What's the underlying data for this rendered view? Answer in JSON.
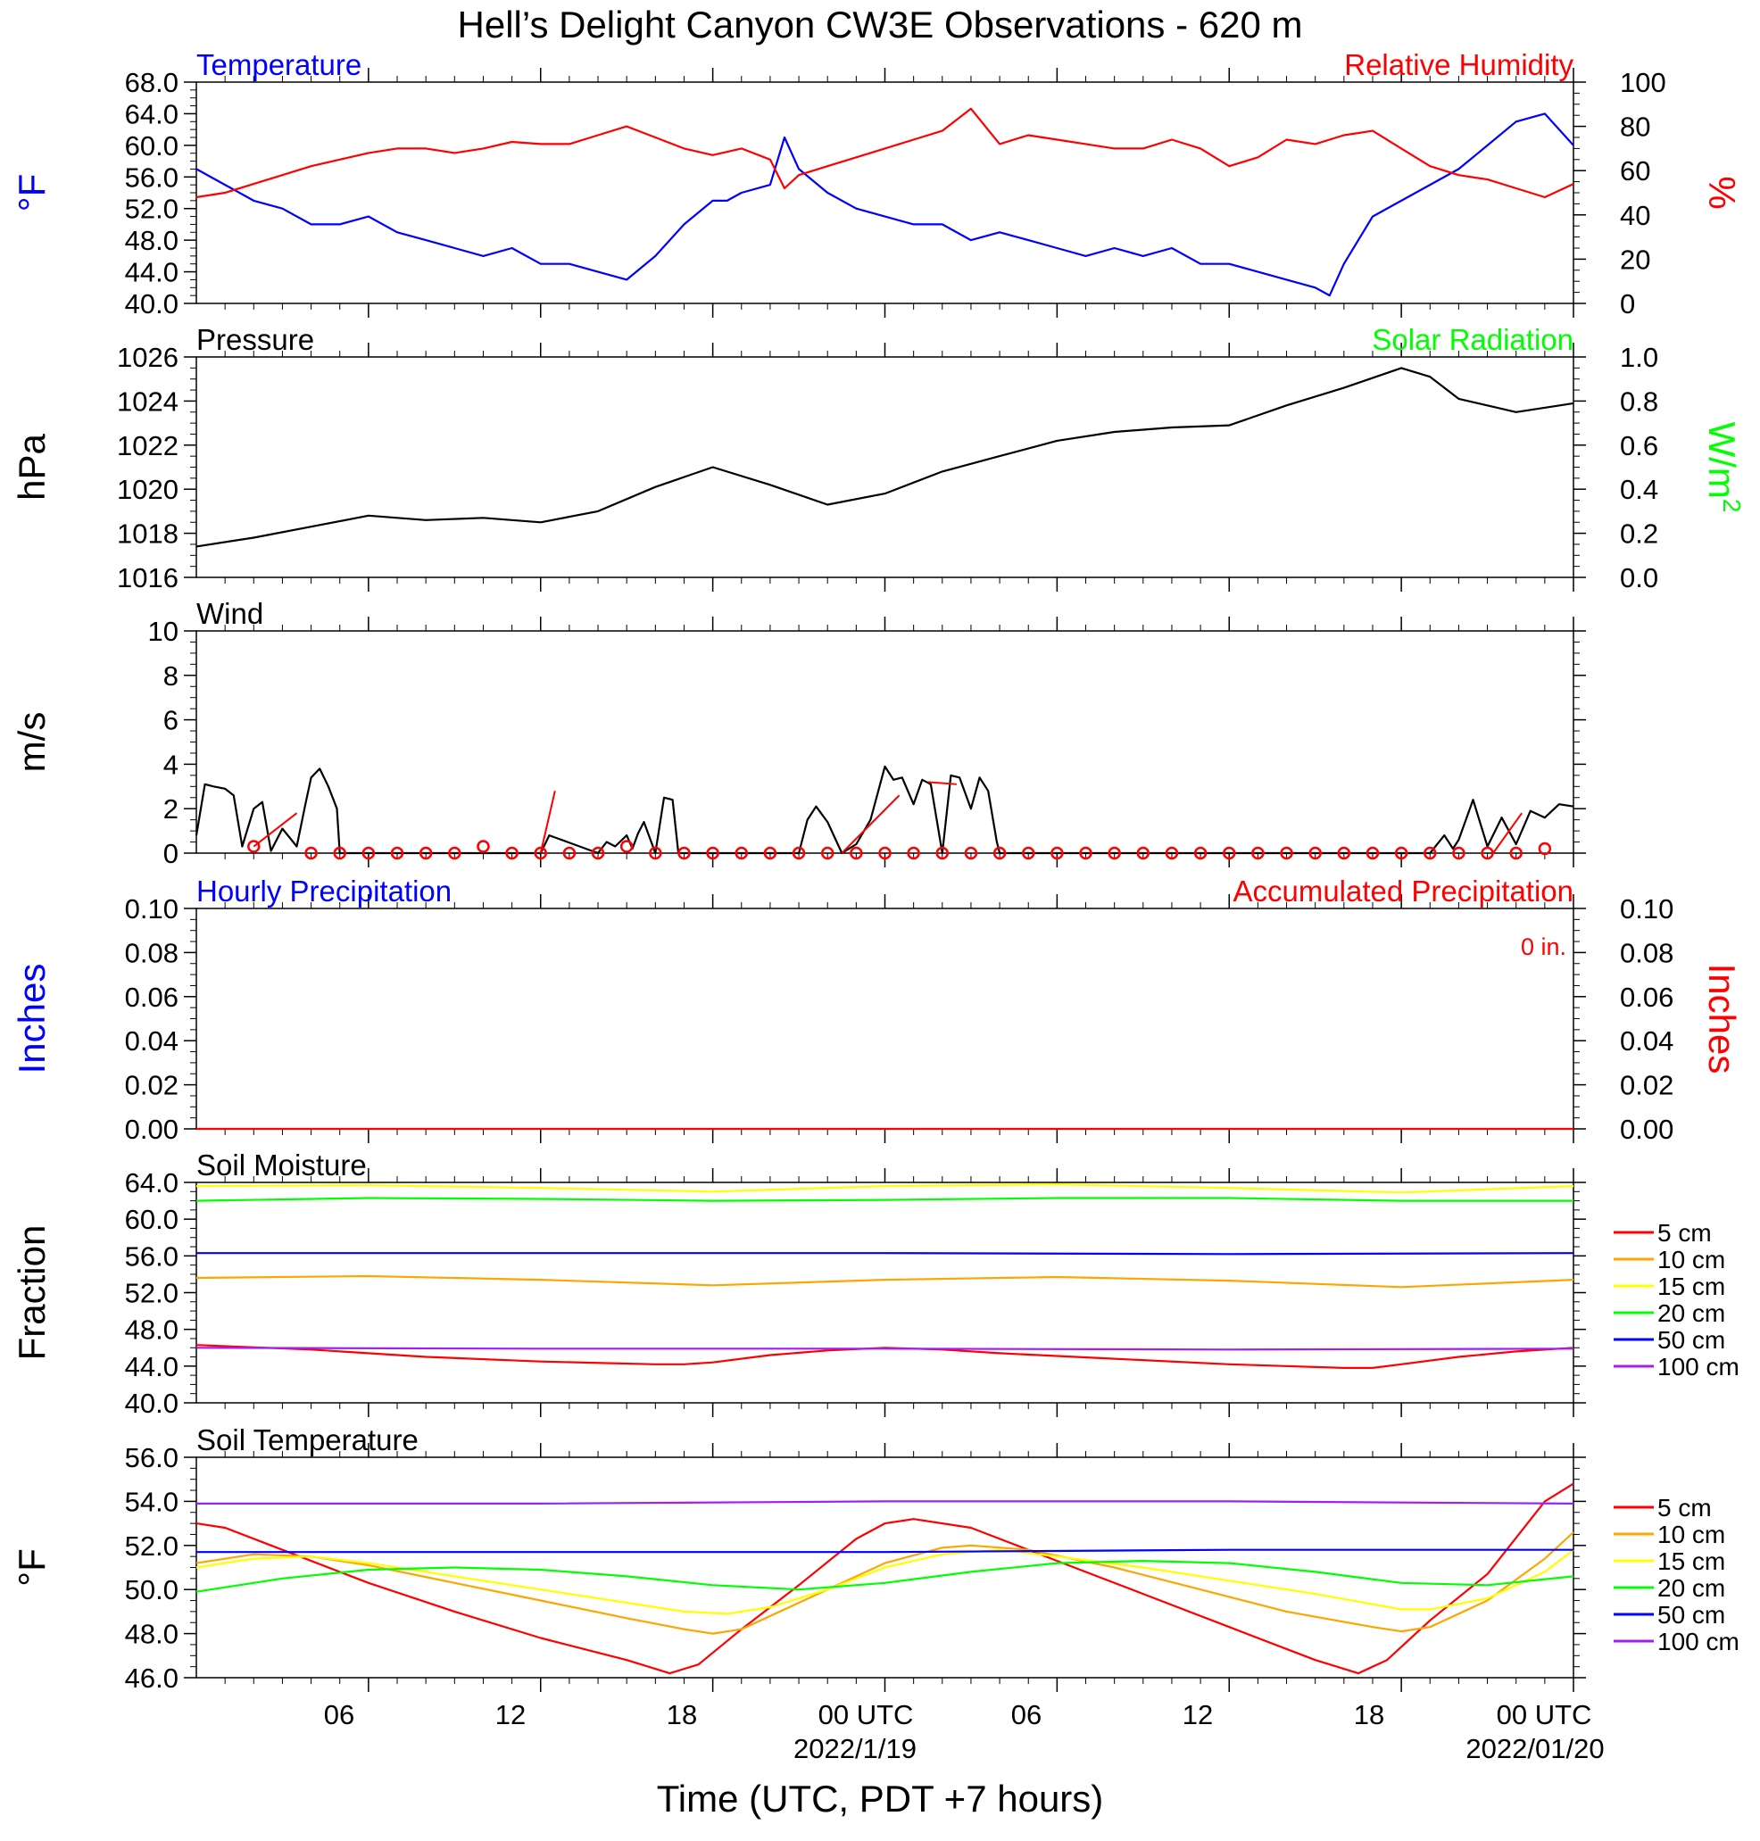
{
  "title": "Hell’s Delight Canyon CW3E Observations - 620 m",
  "time_axis": {
    "label": "Time (UTC, PDT +7 hours)",
    "tick_labels": [
      "06",
      "12",
      "18",
      "00 UTC",
      "06",
      "12",
      "18",
      "00 UTC"
    ],
    "date_labels": [
      "2022/1/19",
      "2022/01/20"
    ]
  },
  "colors": {
    "blue": "#0000ff",
    "red": "#ff0000",
    "green": "#00ff00",
    "black": "#000000"
  },
  "chart_data": [
    {
      "type": "line",
      "title_left": "Temperature",
      "title_right": "Relative Humidity",
      "ylabel_left": "°F",
      "ylabel_right": "%",
      "ylim_left": [
        40,
        68
      ],
      "yticks_left": [
        "68.0",
        "64.0",
        "60.0",
        "56.0",
        "52.0",
        "48.0",
        "44.0",
        "40.0"
      ],
      "ylim_right": [
        0,
        100
      ],
      "yticks_right": [
        "100",
        "80",
        "60",
        "40",
        "20",
        "0"
      ],
      "xlim_hours": [
        0,
        48
      ],
      "series": [
        {
          "axis": "left",
          "color": "#0000ff",
          "x": [
            0,
            1,
            2,
            3,
            4,
            5,
            6,
            7,
            8,
            9,
            10,
            11,
            12,
            13,
            14,
            15,
            16,
            17,
            18,
            18.5,
            19,
            20,
            20.5,
            21,
            22,
            23,
            24,
            25,
            26,
            27,
            28,
            29,
            30,
            31,
            32,
            33,
            34,
            35,
            36,
            37,
            38,
            39,
            39.5,
            40,
            41,
            42,
            43,
            44,
            45,
            46,
            47,
            48
          ],
          "y": [
            57,
            55,
            53,
            52,
            50,
            50,
            51,
            49,
            48,
            47,
            46,
            47,
            45,
            45,
            44,
            43,
            46,
            50,
            53,
            53,
            54,
            55,
            61,
            57,
            54,
            52,
            51,
            50,
            50,
            48,
            49,
            48,
            47,
            46,
            47,
            46,
            47,
            45,
            45,
            44,
            43,
            42,
            41,
            45,
            51,
            53,
            55,
            57,
            60,
            63,
            64,
            60
          ]
        },
        {
          "axis": "right",
          "color": "#ff0000",
          "x": [
            0,
            1,
            2,
            3,
            4,
            5,
            6,
            7,
            8,
            9,
            10,
            11,
            12,
            13,
            14,
            15,
            16,
            17,
            18,
            19,
            20,
            20.5,
            21,
            22,
            23,
            24,
            25,
            26,
            27,
            28,
            29,
            30,
            31,
            32,
            33,
            34,
            35,
            36,
            37,
            38,
            39,
            40,
            41,
            42,
            43,
            44,
            45,
            46,
            47,
            48
          ],
          "y": [
            48,
            50,
            54,
            58,
            62,
            65,
            68,
            70,
            70,
            68,
            70,
            73,
            72,
            72,
            76,
            80,
            75,
            70,
            67,
            70,
            65,
            52,
            58,
            62,
            66,
            70,
            74,
            78,
            88,
            72,
            76,
            74,
            72,
            70,
            70,
            74,
            70,
            62,
            66,
            74,
            72,
            76,
            78,
            70,
            62,
            58,
            56,
            52,
            48,
            54
          ]
        }
      ]
    },
    {
      "type": "line",
      "title_left": "Pressure",
      "title_right": "Solar Radiation",
      "ylabel_left": "hPa",
      "ylabel_right": "W/m",
      "ylabel_right_sup": "2",
      "ylim_left": [
        1016,
        1026
      ],
      "yticks_left": [
        "1026",
        "1024",
        "1022",
        "1020",
        "1018",
        "1016"
      ],
      "ylim_right": [
        0,
        1
      ],
      "yticks_right": [
        "1.0",
        "0.8",
        "0.6",
        "0.4",
        "0.2",
        "0.0"
      ],
      "xlim_hours": [
        0,
        48
      ],
      "series": [
        {
          "axis": "left",
          "color": "#000000",
          "x": [
            0,
            2,
            4,
            6,
            8,
            10,
            12,
            14,
            16,
            18,
            20,
            22,
            24,
            26,
            28,
            30,
            32,
            34,
            36,
            38,
            40,
            42,
            43,
            44,
            46,
            48
          ],
          "y": [
            1017.4,
            1017.8,
            1018.3,
            1018.8,
            1018.6,
            1018.7,
            1018.5,
            1019.0,
            1020.1,
            1021.0,
            1020.2,
            1019.3,
            1019.8,
            1020.8,
            1021.5,
            1022.2,
            1022.6,
            1022.8,
            1022.9,
            1023.8,
            1024.6,
            1025.5,
            1025.1,
            1024.1,
            1023.5,
            1023.9
          ]
        }
      ]
    },
    {
      "type": "line",
      "title_left": "Wind",
      "ylabel_left": "m/s",
      "ylim_left": [
        0,
        10
      ],
      "yticks_left": [
        "10",
        "8",
        "6",
        "4",
        "2",
        "0"
      ],
      "xlim_hours": [
        0,
        48
      ],
      "series": [
        {
          "axis": "left",
          "color": "#000000",
          "x": [
            0,
            0.3,
            0.6,
            1,
            1.3,
            1.6,
            2,
            2.3,
            2.6,
            3,
            3.5,
            3.8,
            4,
            4.3,
            4.6,
            4.9,
            5,
            10.5,
            12,
            12.3,
            14,
            14.3,
            14.6,
            15,
            15.2,
            15.4,
            15.6,
            16,
            16.3,
            16.6,
            16.8,
            21,
            21.3,
            21.6,
            22,
            22.5,
            23,
            23.5,
            24,
            24.3,
            24.6,
            25,
            25.3,
            25.6,
            26,
            26.3,
            26.6,
            27,
            27.3,
            27.6,
            27.9,
            28,
            43,
            43.5,
            43.8,
            44,
            44.5,
            45,
            45.5,
            46,
            46.5,
            47,
            47.5,
            48
          ],
          "y": [
            0.8,
            3.1,
            3.0,
            2.9,
            2.6,
            0.3,
            2.0,
            2.3,
            0.1,
            1.1,
            0.3,
            2.2,
            3.4,
            3.8,
            3.0,
            2.0,
            0,
            0,
            0,
            0.8,
            0,
            0.5,
            0.3,
            0.8,
            0.2,
            0.9,
            1.4,
            0,
            2.5,
            2.4,
            0,
            0,
            1.5,
            2.1,
            1.4,
            0,
            0.4,
            1.5,
            3.9,
            3.3,
            3.4,
            2.2,
            3.3,
            3.1,
            0,
            3.5,
            3.4,
            2.0,
            3.4,
            2.8,
            0.5,
            0,
            0,
            0.8,
            0.2,
            0.6,
            2.4,
            0.3,
            1.6,
            0.4,
            1.9,
            1.6,
            2.2,
            2.1
          ]
        }
      ],
      "barbs": {
        "color": "#ff0000",
        "x": [
          2,
          4,
          5,
          6,
          7,
          8,
          9,
          10,
          11,
          12,
          13,
          14,
          15,
          16,
          17,
          18,
          19,
          20,
          21,
          22,
          23,
          24,
          25,
          26,
          27,
          28,
          29,
          30,
          31,
          32,
          33,
          34,
          35,
          36,
          37,
          38,
          39,
          40,
          41,
          42,
          43,
          44,
          45,
          46,
          47
        ],
        "y": [
          0.3,
          0,
          0,
          0,
          0,
          0,
          0,
          0.3,
          0,
          0,
          0,
          0,
          0.3,
          0,
          0,
          0,
          0,
          0,
          0,
          0,
          0,
          0,
          0,
          0,
          0,
          0,
          0,
          0,
          0,
          0,
          0,
          0,
          0,
          0,
          0,
          0,
          0,
          0,
          0,
          0,
          0,
          0,
          0,
          0,
          0.2
        ]
      }
    },
    {
      "type": "line",
      "title_left": "Hourly Precipitation",
      "title_right": "Accumulated Precipitation",
      "total_label": "0 in.",
      "ylabel_left": "Inches",
      "ylabel_right": "Inches",
      "ylim_left": [
        0,
        0.1
      ],
      "yticks_left": [
        "0.10",
        "0.08",
        "0.06",
        "0.04",
        "0.02",
        "0.00"
      ],
      "ylim_right": [
        0,
        0.1
      ],
      "yticks_right": [
        "0.10",
        "0.08",
        "0.06",
        "0.04",
        "0.02",
        "0.00"
      ],
      "xlim_hours": [
        0,
        48
      ],
      "series": [
        {
          "axis": "left",
          "color": "#ff0000",
          "x": [
            0,
            48
          ],
          "y": [
            0,
            0
          ]
        }
      ]
    },
    {
      "type": "line",
      "title_left": "Soil Moisture",
      "ylabel_left": "Fraction",
      "ylim_left": [
        40,
        64
      ],
      "yticks_left": [
        "64.0",
        "60.0",
        "56.0",
        "52.0",
        "48.0",
        "44.0",
        "40.0"
      ],
      "xlim_hours": [
        0,
        48
      ],
      "series": [
        {
          "name": "5 cm",
          "color": "#ff0000",
          "x": [
            0,
            4,
            8,
            12,
            16,
            17,
            18,
            20,
            22,
            24,
            26,
            28,
            32,
            36,
            40,
            41,
            42,
            44,
            46,
            48
          ],
          "y": [
            46.3,
            45.8,
            45.0,
            44.5,
            44.2,
            44.2,
            44.4,
            45.2,
            45.7,
            46.0,
            45.8,
            45.4,
            44.8,
            44.2,
            43.8,
            43.8,
            44.2,
            45.0,
            45.6,
            46.0
          ]
        },
        {
          "name": "10 cm",
          "color": "#ffa500",
          "x": [
            0,
            6,
            12,
            18,
            24,
            30,
            36,
            42,
            48
          ],
          "y": [
            53.6,
            53.8,
            53.4,
            52.8,
            53.4,
            53.7,
            53.3,
            52.6,
            53.4
          ]
        },
        {
          "name": "15 cm",
          "color": "#ffff00",
          "x": [
            0,
            6,
            12,
            18,
            24,
            30,
            36,
            42,
            48
          ],
          "y": [
            63.6,
            63.7,
            63.4,
            63.0,
            63.6,
            63.8,
            63.4,
            62.9,
            63.6
          ]
        },
        {
          "name": "20 cm",
          "color": "#00ff00",
          "x": [
            0,
            6,
            12,
            18,
            24,
            30,
            36,
            42,
            48
          ],
          "y": [
            62.0,
            62.3,
            62.2,
            62.0,
            62.1,
            62.3,
            62.3,
            62.0,
            62.0
          ]
        },
        {
          "name": "50 cm",
          "color": "#0000ff",
          "x": [
            0,
            12,
            24,
            36,
            48
          ],
          "y": [
            56.3,
            56.3,
            56.3,
            56.2,
            56.3
          ]
        },
        {
          "name": "100 cm",
          "color": "#a020f0",
          "x": [
            0,
            12,
            24,
            36,
            48
          ],
          "y": [
            46.0,
            45.9,
            45.9,
            45.8,
            45.9
          ]
        }
      ]
    },
    {
      "type": "line",
      "title_left": "Soil Temperature",
      "ylabel_left": "°F",
      "ylim_left": [
        46,
        56
      ],
      "yticks_left": [
        "56.0",
        "54.0",
        "52.0",
        "50.0",
        "48.0",
        "46.0"
      ],
      "xlim_hours": [
        0,
        48
      ],
      "series": [
        {
          "name": "5 cm",
          "color": "#ff0000",
          "x": [
            0,
            1,
            3,
            6,
            9,
            12,
            15,
            16,
            16.5,
            17.5,
            19,
            21,
            23,
            24,
            25,
            27,
            30,
            33,
            36,
            39,
            40,
            40.5,
            41.5,
            43,
            45,
            47,
            48
          ],
          "y": [
            53.0,
            52.8,
            51.8,
            50.3,
            49.0,
            47.8,
            46.8,
            46.4,
            46.2,
            46.6,
            48.2,
            50.2,
            52.3,
            53.0,
            53.2,
            52.8,
            51.3,
            49.8,
            48.3,
            46.8,
            46.4,
            46.2,
            46.8,
            48.6,
            50.7,
            54.0,
            54.8
          ]
        },
        {
          "name": "10 cm",
          "color": "#ffa500",
          "x": [
            0,
            2,
            4,
            6,
            9,
            12,
            15,
            17,
            18,
            19,
            21,
            24,
            26,
            27,
            29,
            32,
            35,
            38,
            41,
            42,
            43,
            45,
            47,
            48
          ],
          "y": [
            51.2,
            51.6,
            51.5,
            51.1,
            50.3,
            49.5,
            48.7,
            48.2,
            48.0,
            48.2,
            49.4,
            51.2,
            51.9,
            52.0,
            51.8,
            51.0,
            50.0,
            49.0,
            48.3,
            48.1,
            48.3,
            49.5,
            51.4,
            52.6
          ]
        },
        {
          "name": "15 cm",
          "color": "#ffff00",
          "x": [
            0,
            2,
            4,
            6,
            9,
            12,
            15,
            17,
            18.5,
            20,
            22,
            24,
            26,
            28,
            30,
            33,
            36,
            39,
            42,
            43,
            45,
            47,
            48
          ],
          "y": [
            51.0,
            51.4,
            51.5,
            51.2,
            50.6,
            50.0,
            49.4,
            49.0,
            48.9,
            49.2,
            50.0,
            51.0,
            51.6,
            51.8,
            51.5,
            51.0,
            50.4,
            49.8,
            49.1,
            49.1,
            49.6,
            50.8,
            51.8
          ]
        },
        {
          "name": "20 cm",
          "color": "#00ff00",
          "x": [
            0,
            3,
            6,
            9,
            12,
            15,
            18,
            21,
            24,
            27,
            30,
            33,
            36,
            39,
            42,
            45,
            48
          ],
          "y": [
            49.9,
            50.5,
            50.9,
            51.0,
            50.9,
            50.6,
            50.2,
            50.0,
            50.3,
            50.8,
            51.2,
            51.3,
            51.2,
            50.8,
            50.3,
            50.2,
            50.6
          ]
        },
        {
          "name": "50 cm",
          "color": "#0000ff",
          "x": [
            0,
            12,
            24,
            36,
            48
          ],
          "y": [
            51.7,
            51.7,
            51.7,
            51.8,
            51.8
          ]
        },
        {
          "name": "100 cm",
          "color": "#a020f0",
          "x": [
            0,
            12,
            24,
            36,
            48
          ],
          "y": [
            53.9,
            53.9,
            54.0,
            54.0,
            53.9
          ]
        }
      ]
    }
  ]
}
